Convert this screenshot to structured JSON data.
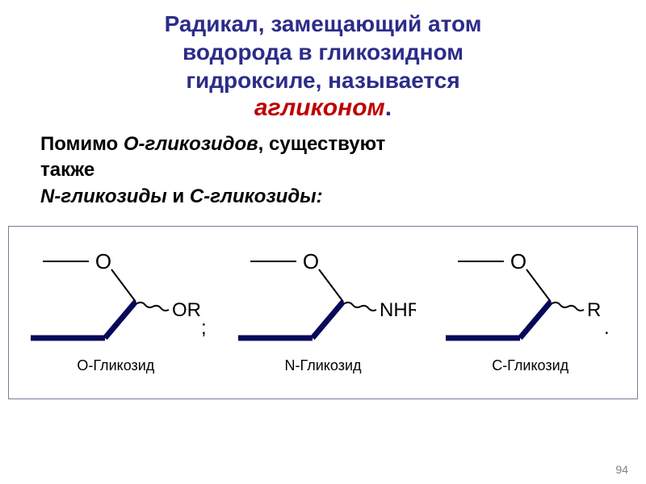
{
  "title": {
    "line1": "Радикал, замещающий атом",
    "line2": "водорода в гликозидном",
    "line3": "гидроксиле, называется",
    "highlight": "агликоном",
    "period": "."
  },
  "body": {
    "line1_a": "Помимо ",
    "line1_b": "О-гликозидов",
    "line1_c": ", существуют",
    "line2": "также",
    "line3_a": "N-гликозиды",
    "line3_b": " и ",
    "line3_c": "С-гликозиды:"
  },
  "structures": [
    {
      "caption": "О-Гликозид",
      "o_label": "O",
      "sub_label": "OR",
      "punct": ";",
      "colors": {
        "thin": "#000000",
        "thick": "#08085a"
      }
    },
    {
      "caption": "N-Гликозид",
      "o_label": "O",
      "sub_label": "NHR",
      "punct": ";",
      "colors": {
        "thin": "#000000",
        "thick": "#08085a"
      }
    },
    {
      "caption": "С-Гликозид",
      "o_label": "O",
      "sub_label": "R",
      "punct": ".",
      "colors": {
        "thin": "#000000",
        "thick": "#08085a"
      }
    }
  ],
  "style": {
    "title_color": "#2c2c8a",
    "highlight_color": "#c00000",
    "body_color": "#000000",
    "border_color": "#7a7a9a",
    "page_bg": "#ffffff",
    "title_fontsize": 28,
    "body_fontsize": 24,
    "caption_fontsize": 18,
    "wavy_pitch": 9,
    "wavy_amp": 4,
    "thin_width": 2,
    "thick_width": 7
  },
  "page_number": "94"
}
